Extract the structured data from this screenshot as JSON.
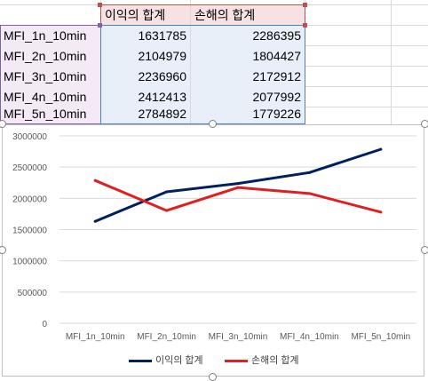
{
  "sheet": {
    "headers": [
      "이익의 합계",
      "손해의 합계"
    ],
    "rows": [
      {
        "label": "MFI_1n_10min",
        "profit": "1631785",
        "loss": "2286395"
      },
      {
        "label": "MFI_2n_10min",
        "profit": "2104979",
        "loss": "1804427"
      },
      {
        "label": "MFI_3n_10min",
        "profit": "2236960",
        "loss": "2172912"
      },
      {
        "label": "MFI_4n_10min",
        "profit": "2412413",
        "loss": "2077992"
      },
      {
        "label": "MFI_5n_10min",
        "profit": "2784892",
        "loss": "1779226"
      }
    ]
  },
  "chart_data": {
    "type": "line",
    "categories": [
      "MFI_1n_10min",
      "MFI_2n_10min",
      "MFI_3n_10min",
      "MFI_4n_10min",
      "MFI_5n_10min"
    ],
    "series": [
      {
        "name": "이익의 합계",
        "values": [
          1631785,
          2104979,
          2236960,
          2412413,
          2784892
        ],
        "color": "#002060"
      },
      {
        "name": "손해의 합계",
        "values": [
          2286395,
          1804427,
          2172912,
          2077992,
          1779226
        ],
        "color": "#e02020"
      }
    ],
    "ylim": [
      0,
      3000000
    ],
    "yticks": [
      "0",
      "500000",
      "1000000",
      "1500000",
      "2000000",
      "2500000",
      "3000000"
    ],
    "grid": true,
    "legend": "bottom"
  },
  "colors": {
    "header_fill": "#f7e1e3",
    "label_fill": "#f3eaf6",
    "value_fill": "#e8eff9",
    "range_red": "#c0504d",
    "range_purple": "#8064a2",
    "range_blue": "#4f81bd"
  }
}
